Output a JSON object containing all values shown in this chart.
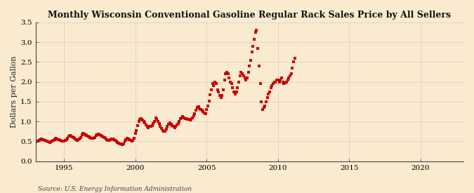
{
  "title": "Monthly Wisconsin Conventional Gasoline Regular Rack Sales Price by All Sellers",
  "ylabel": "Dollars per Gallon",
  "source": "Source: U.S. Energy Information Administration",
  "background_color": "#faebd0",
  "dot_color": "#cc0000",
  "xlim": [
    1993.0,
    2023.0
  ],
  "ylim": [
    0.0,
    3.5
  ],
  "xticks": [
    1995,
    2000,
    2005,
    2010,
    2015,
    2020
  ],
  "yticks": [
    0.0,
    0.5,
    1.0,
    1.5,
    2.0,
    2.5,
    3.0,
    3.5
  ],
  "data": [
    [
      1993.0,
      0.49
    ],
    [
      1993.08,
      0.5
    ],
    [
      1993.17,
      0.5
    ],
    [
      1993.25,
      0.52
    ],
    [
      1993.33,
      0.54
    ],
    [
      1993.42,
      0.56
    ],
    [
      1993.5,
      0.55
    ],
    [
      1993.58,
      0.54
    ],
    [
      1993.67,
      0.53
    ],
    [
      1993.75,
      0.51
    ],
    [
      1993.83,
      0.5
    ],
    [
      1993.92,
      0.49
    ],
    [
      1994.0,
      0.48
    ],
    [
      1994.08,
      0.49
    ],
    [
      1994.17,
      0.51
    ],
    [
      1994.25,
      0.53
    ],
    [
      1994.33,
      0.55
    ],
    [
      1994.42,
      0.57
    ],
    [
      1994.5,
      0.56
    ],
    [
      1994.58,
      0.55
    ],
    [
      1994.67,
      0.54
    ],
    [
      1994.75,
      0.52
    ],
    [
      1994.83,
      0.51
    ],
    [
      1994.92,
      0.5
    ],
    [
      1995.0,
      0.5
    ],
    [
      1995.08,
      0.52
    ],
    [
      1995.17,
      0.54
    ],
    [
      1995.25,
      0.58
    ],
    [
      1995.33,
      0.63
    ],
    [
      1995.42,
      0.65
    ],
    [
      1995.5,
      0.63
    ],
    [
      1995.58,
      0.61
    ],
    [
      1995.67,
      0.59
    ],
    [
      1995.75,
      0.57
    ],
    [
      1995.83,
      0.55
    ],
    [
      1995.92,
      0.53
    ],
    [
      1996.0,
      0.54
    ],
    [
      1996.08,
      0.56
    ],
    [
      1996.17,
      0.6
    ],
    [
      1996.25,
      0.67
    ],
    [
      1996.33,
      0.7
    ],
    [
      1996.42,
      0.69
    ],
    [
      1996.5,
      0.67
    ],
    [
      1996.58,
      0.65
    ],
    [
      1996.67,
      0.63
    ],
    [
      1996.75,
      0.62
    ],
    [
      1996.83,
      0.6
    ],
    [
      1996.92,
      0.58
    ],
    [
      1997.0,
      0.57
    ],
    [
      1997.08,
      0.58
    ],
    [
      1997.17,
      0.6
    ],
    [
      1997.25,
      0.64
    ],
    [
      1997.33,
      0.67
    ],
    [
      1997.42,
      0.68
    ],
    [
      1997.5,
      0.66
    ],
    [
      1997.58,
      0.64
    ],
    [
      1997.67,
      0.63
    ],
    [
      1997.75,
      0.61
    ],
    [
      1997.83,
      0.59
    ],
    [
      1997.92,
      0.57
    ],
    [
      1998.0,
      0.55
    ],
    [
      1998.08,
      0.53
    ],
    [
      1998.17,
      0.52
    ],
    [
      1998.25,
      0.54
    ],
    [
      1998.33,
      0.56
    ],
    [
      1998.42,
      0.56
    ],
    [
      1998.5,
      0.54
    ],
    [
      1998.58,
      0.52
    ],
    [
      1998.67,
      0.5
    ],
    [
      1998.75,
      0.48
    ],
    [
      1998.83,
      0.46
    ],
    [
      1998.92,
      0.44
    ],
    [
      1999.0,
      0.43
    ],
    [
      1999.08,
      0.42
    ],
    [
      1999.17,
      0.44
    ],
    [
      1999.25,
      0.5
    ],
    [
      1999.33,
      0.55
    ],
    [
      1999.42,
      0.58
    ],
    [
      1999.5,
      0.56
    ],
    [
      1999.58,
      0.54
    ],
    [
      1999.67,
      0.52
    ],
    [
      1999.75,
      0.5
    ],
    [
      1999.83,
      0.53
    ],
    [
      1999.92,
      0.58
    ],
    [
      2000.0,
      0.7
    ],
    [
      2000.08,
      0.78
    ],
    [
      2000.17,
      0.9
    ],
    [
      2000.25,
      1.0
    ],
    [
      2000.33,
      1.05
    ],
    [
      2000.42,
      1.08
    ],
    [
      2000.5,
      1.03
    ],
    [
      2000.58,
      1.0
    ],
    [
      2000.67,
      0.97
    ],
    [
      2000.75,
      0.92
    ],
    [
      2000.83,
      0.88
    ],
    [
      2000.92,
      0.85
    ],
    [
      2001.0,
      0.87
    ],
    [
      2001.08,
      0.88
    ],
    [
      2001.17,
      0.9
    ],
    [
      2001.25,
      0.95
    ],
    [
      2001.33,
      1.0
    ],
    [
      2001.42,
      1.1
    ],
    [
      2001.5,
      1.05
    ],
    [
      2001.58,
      1.0
    ],
    [
      2001.67,
      0.95
    ],
    [
      2001.75,
      0.88
    ],
    [
      2001.83,
      0.82
    ],
    [
      2001.92,
      0.78
    ],
    [
      2002.0,
      0.75
    ],
    [
      2002.08,
      0.76
    ],
    [
      2002.17,
      0.8
    ],
    [
      2002.25,
      0.88
    ],
    [
      2002.33,
      0.93
    ],
    [
      2002.42,
      0.97
    ],
    [
      2002.5,
      0.93
    ],
    [
      2002.58,
      0.9
    ],
    [
      2002.67,
      0.87
    ],
    [
      2002.75,
      0.85
    ],
    [
      2002.83,
      0.88
    ],
    [
      2002.92,
      0.92
    ],
    [
      2003.0,
      0.95
    ],
    [
      2003.08,
      1.0
    ],
    [
      2003.17,
      1.08
    ],
    [
      2003.25,
      1.1
    ],
    [
      2003.33,
      1.12
    ],
    [
      2003.42,
      1.1
    ],
    [
      2003.5,
      1.08
    ],
    [
      2003.58,
      1.07
    ],
    [
      2003.67,
      1.06
    ],
    [
      2003.75,
      1.05
    ],
    [
      2003.83,
      1.03
    ],
    [
      2003.92,
      1.05
    ],
    [
      2004.0,
      1.1
    ],
    [
      2004.08,
      1.15
    ],
    [
      2004.17,
      1.2
    ],
    [
      2004.25,
      1.28
    ],
    [
      2004.33,
      1.35
    ],
    [
      2004.42,
      1.38
    ],
    [
      2004.5,
      1.33
    ],
    [
      2004.58,
      1.3
    ],
    [
      2004.67,
      1.28
    ],
    [
      2004.75,
      1.25
    ],
    [
      2004.83,
      1.22
    ],
    [
      2004.92,
      1.2
    ],
    [
      2005.0,
      1.3
    ],
    [
      2005.08,
      1.4
    ],
    [
      2005.17,
      1.52
    ],
    [
      2005.25,
      1.68
    ],
    [
      2005.33,
      1.8
    ],
    [
      2005.42,
      1.95
    ],
    [
      2005.5,
      1.9
    ],
    [
      2005.58,
      2.0
    ],
    [
      2005.67,
      1.95
    ],
    [
      2005.75,
      1.8
    ],
    [
      2005.83,
      1.75
    ],
    [
      2005.92,
      1.65
    ],
    [
      2006.0,
      1.6
    ],
    [
      2006.08,
      1.65
    ],
    [
      2006.17,
      1.8
    ],
    [
      2006.25,
      2.05
    ],
    [
      2006.33,
      2.2
    ],
    [
      2006.42,
      2.25
    ],
    [
      2006.5,
      2.2
    ],
    [
      2006.58,
      2.1
    ],
    [
      2006.67,
      2.0
    ],
    [
      2006.75,
      1.95
    ],
    [
      2006.83,
      1.85
    ],
    [
      2006.92,
      1.75
    ],
    [
      2007.0,
      1.7
    ],
    [
      2007.08,
      1.75
    ],
    [
      2007.17,
      1.85
    ],
    [
      2007.25,
      2.0
    ],
    [
      2007.33,
      2.15
    ],
    [
      2007.42,
      2.25
    ],
    [
      2007.5,
      2.2
    ],
    [
      2007.58,
      2.15
    ],
    [
      2007.67,
      2.1
    ],
    [
      2007.75,
      2.05
    ],
    [
      2007.83,
      2.1
    ],
    [
      2007.92,
      2.25
    ],
    [
      2008.0,
      2.4
    ],
    [
      2008.08,
      2.55
    ],
    [
      2008.17,
      2.75
    ],
    [
      2008.25,
      2.9
    ],
    [
      2008.33,
      3.08
    ],
    [
      2008.42,
      3.25
    ],
    [
      2008.5,
      3.3
    ],
    [
      2008.58,
      2.85
    ],
    [
      2008.67,
      2.4
    ],
    [
      2008.75,
      1.95
    ],
    [
      2008.83,
      1.5
    ],
    [
      2008.92,
      1.3
    ],
    [
      2009.0,
      1.35
    ],
    [
      2009.08,
      1.4
    ],
    [
      2009.17,
      1.5
    ],
    [
      2009.25,
      1.6
    ],
    [
      2009.33,
      1.7
    ],
    [
      2009.42,
      1.75
    ],
    [
      2009.5,
      1.85
    ],
    [
      2009.58,
      1.9
    ],
    [
      2009.67,
      1.95
    ],
    [
      2009.75,
      2.0
    ],
    [
      2009.83,
      2.0
    ],
    [
      2009.92,
      2.05
    ],
    [
      2010.0,
      2.05
    ],
    [
      2010.08,
      2.0
    ],
    [
      2010.17,
      2.05
    ],
    [
      2010.25,
      2.1
    ],
    [
      2010.33,
      2.0
    ],
    [
      2010.42,
      1.95
    ],
    [
      2010.5,
      1.98
    ],
    [
      2010.58,
      2.0
    ],
    [
      2010.67,
      2.05
    ],
    [
      2010.75,
      2.1
    ],
    [
      2010.83,
      2.15
    ],
    [
      2010.92,
      2.2
    ],
    [
      2011.0,
      2.35
    ],
    [
      2011.08,
      2.5
    ],
    [
      2011.17,
      2.6
    ]
  ]
}
